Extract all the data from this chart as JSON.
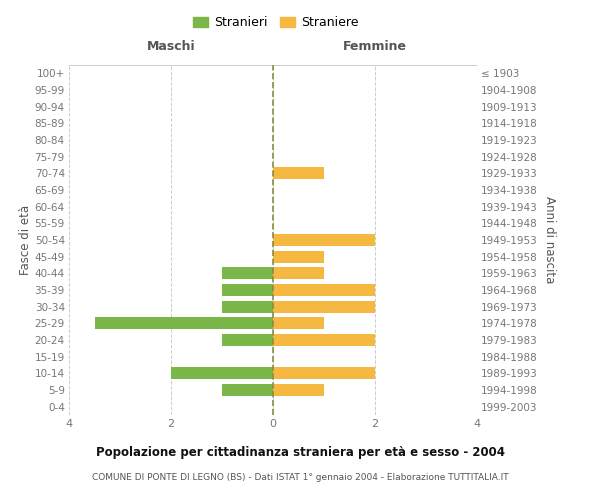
{
  "age_groups": [
    "0-4",
    "5-9",
    "10-14",
    "15-19",
    "20-24",
    "25-29",
    "30-34",
    "35-39",
    "40-44",
    "45-49",
    "50-54",
    "55-59",
    "60-64",
    "65-69",
    "70-74",
    "75-79",
    "80-84",
    "85-89",
    "90-94",
    "95-99",
    "100+"
  ],
  "birth_years": [
    "1999-2003",
    "1994-1998",
    "1989-1993",
    "1984-1988",
    "1979-1983",
    "1974-1978",
    "1969-1973",
    "1964-1968",
    "1959-1963",
    "1954-1958",
    "1949-1953",
    "1944-1948",
    "1939-1943",
    "1934-1938",
    "1929-1933",
    "1924-1928",
    "1919-1923",
    "1914-1918",
    "1909-1913",
    "1904-1908",
    "≤ 1903"
  ],
  "males": [
    0,
    1,
    2,
    0,
    1,
    3.5,
    1,
    1,
    1,
    0,
    0,
    0,
    0,
    0,
    0,
    0,
    0,
    0,
    0,
    0,
    0
  ],
  "females": [
    0,
    1,
    2,
    0,
    2,
    1,
    2,
    2,
    1,
    1,
    2,
    0,
    0,
    0,
    1,
    0,
    0,
    0,
    0,
    0,
    0
  ],
  "male_color": "#7ab648",
  "female_color": "#f5b942",
  "grid_color": "#cccccc",
  "center_line_color": "#8b8b40",
  "background_color": "#ffffff",
  "title": "Popolazione per cittadinanza straniera per età e sesso - 2004",
  "subtitle": "COMUNE DI PONTE DI LEGNO (BS) - Dati ISTAT 1° gennaio 2004 - Elaborazione TUTTITALIA.IT",
  "ylabel_left": "Fasce di età",
  "ylabel_right": "Anni di nascita",
  "xlabel_maschi": "Maschi",
  "xlabel_femmine": "Femmine",
  "legend_stranieri": "Stranieri",
  "legend_straniere": "Straniere",
  "xlim": 4,
  "bar_height": 0.72
}
